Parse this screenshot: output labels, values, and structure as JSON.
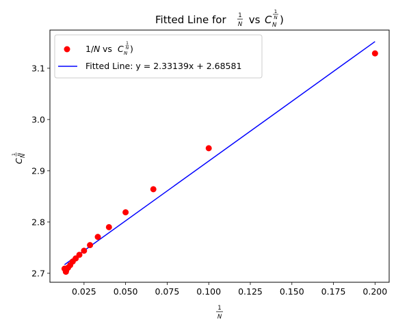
{
  "chart_data": {
    "type": "scatter",
    "title": {
      "prefix": "Fitted Line for ",
      "frac_num": "1",
      "frac_den": "N",
      "middle": " vs ",
      "var": "C",
      "var_sub": "N",
      "exp_num": "1",
      "exp_den": "N",
      "close": ")"
    },
    "xlabel": {
      "num": "1",
      "den": "N"
    },
    "ylabel": {
      "var": "C",
      "sub": "N",
      "exp_num": "1",
      "exp_den": "N"
    },
    "xlim": [
      0.0045,
      0.2085
    ],
    "ylim": [
      2.6825,
      3.1745
    ],
    "xticks": [
      0.025,
      0.05,
      0.075,
      0.1,
      0.125,
      0.15,
      0.175,
      0.2
    ],
    "xtick_labels": [
      "0.025",
      "0.050",
      "0.075",
      "0.100",
      "0.125",
      "0.150",
      "0.175",
      "0.200"
    ],
    "yticks": [
      2.7,
      2.8,
      2.9,
      3.0,
      3.1
    ],
    "ytick_labels": [
      "2.7",
      "2.8",
      "2.9",
      "3.0",
      "3.1"
    ],
    "grid": false,
    "legend_position": "top-left",
    "series": [
      {
        "name": "1/N vs C_N^(1/N))",
        "legend_label": {
          "prefix": "1/",
          "ital": "N",
          "middle": " vs ",
          "var": "C",
          "sub": "N",
          "exp_num": "1",
          "exp_den": "N",
          "close": ")"
        },
        "kind": "scatter",
        "color": "#ff0000",
        "points": [
          {
            "x": 0.2,
            "y": 3.129
          },
          {
            "x": 0.1,
            "y": 2.944
          },
          {
            "x": 0.0667,
            "y": 2.864
          },
          {
            "x": 0.05,
            "y": 2.819
          },
          {
            "x": 0.04,
            "y": 2.79
          },
          {
            "x": 0.0333,
            "y": 2.771
          },
          {
            "x": 0.0286,
            "y": 2.755
          },
          {
            "x": 0.025,
            "y": 2.744
          },
          {
            "x": 0.0222,
            "y": 2.736
          },
          {
            "x": 0.02,
            "y": 2.729
          },
          {
            "x": 0.0182,
            "y": 2.723
          },
          {
            "x": 0.0167,
            "y": 2.716
          },
          {
            "x": 0.0154,
            "y": 2.711
          },
          {
            "x": 0.0143,
            "y": 2.706
          },
          {
            "x": 0.0133,
            "y": 2.709
          },
          {
            "x": 0.0141,
            "y": 2.703
          }
        ]
      },
      {
        "name": "Fitted Line: y = 2.33139x + 2.68581",
        "kind": "line",
        "color": "#0000ff",
        "slope": 2.33139,
        "intercept": 2.68581,
        "x": [
          0.0133,
          0.2
        ]
      }
    ]
  }
}
